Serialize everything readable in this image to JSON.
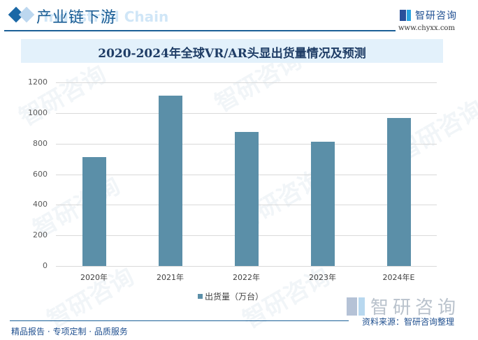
{
  "header": {
    "section_title": "产业链下游",
    "section_subtitle": "Industrial Chain",
    "brand_name": "智研咨询",
    "brand_url": "www.chyxx.com"
  },
  "chart_data": {
    "type": "bar",
    "title": "2020-2024年全球VR/AR头显出货量情况及预测",
    "categories": [
      "2020年",
      "2021年",
      "2022年",
      "2023年",
      "2024年E"
    ],
    "series": [
      {
        "name": "出货量（万台）",
        "values": [
          710,
          1113,
          878,
          810,
          968
        ],
        "color": "#5b8fa8"
      }
    ],
    "xlabel": "",
    "ylabel": "",
    "ylim": [
      0,
      1200
    ],
    "yticks": [
      0,
      200,
      400,
      600,
      800,
      1000,
      1200
    ],
    "grid": true,
    "legend_position": "bottom"
  },
  "footer": {
    "left_text": "精品报告 · 专项定制 · 品质服务",
    "source_text": "资料来源：智研咨询整理",
    "watermark_brand": "智研咨询"
  },
  "colors": {
    "accent": "#1b5f97",
    "bar": "#5b8fa8",
    "title_band": "#e3f1fb"
  }
}
